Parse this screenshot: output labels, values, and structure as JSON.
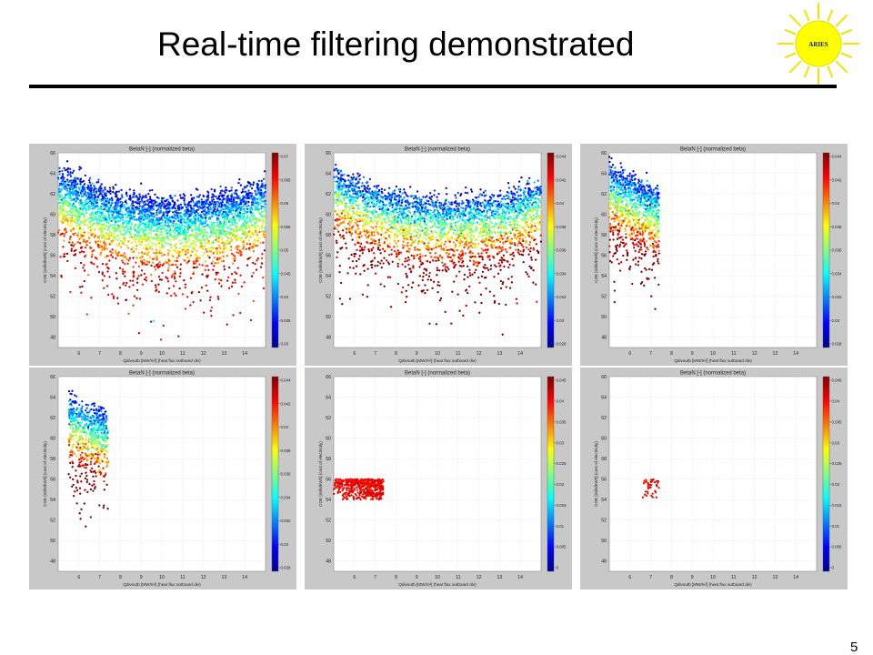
{
  "slide": {
    "title": "Real-time filtering demonstrated",
    "page_number": "5",
    "logo_text": "ARIES"
  },
  "colors": {
    "panel_bg": "#c8c8c8",
    "plot_bg": "#ffffff",
    "grid": "#dedede",
    "title_rule": "#000000",
    "colormap": [
      "#00008f",
      "#0000ff",
      "#0080ff",
      "#00ffff",
      "#80ff80",
      "#ffff00",
      "#ff8000",
      "#ff0000",
      "#800000"
    ]
  },
  "chart_data": [
    {
      "type": "scatter",
      "title": "BetaN [-] (normalized beta)",
      "xlabel": "Qdivoutb [MW/m²] (heat flux outboard div)",
      "ylabel": "COE [mills/kWh] (cost of electricity)",
      "xlim": [
        5,
        15
      ],
      "ylim": [
        47,
        66
      ],
      "xticks": [
        6,
        7,
        8,
        9,
        10,
        11,
        12,
        13,
        14
      ],
      "yticks": [
        48,
        50,
        52,
        54,
        56,
        58,
        60,
        62,
        64,
        66
      ],
      "colorbar": {
        "min": 0.03,
        "max": 0.07,
        "ticks": [
          "0.07",
          "0.065",
          "0.06",
          "0.055",
          "0.05",
          "0.045",
          "0.04",
          "0.035",
          "0.03"
        ]
      },
      "grid": true,
      "filter": {
        "x_range": [
          5.0,
          15.0
        ],
        "y_range": [
          47,
          66
        ]
      },
      "cloud": {
        "n": 3600,
        "x_range": [
          5.0,
          15.0
        ]
      }
    },
    {
      "type": "scatter",
      "title": "BetaN [-] (normalized beta)",
      "xlabel": "Qdivoutb [MW/m²] (heat flux outboard div)",
      "ylabel": "COE [mills/kWh] (cost of electricity)",
      "xlim": [
        5,
        15
      ],
      "ylim": [
        47,
        66
      ],
      "xticks": [
        6,
        7,
        8,
        9,
        10,
        11,
        12,
        13,
        14
      ],
      "yticks": [
        48,
        50,
        52,
        54,
        56,
        58,
        60,
        62,
        64,
        66
      ],
      "colorbar": {
        "min": 0.028,
        "max": 0.044,
        "ticks": [
          "0.044",
          "0.042",
          "0.04",
          "0.038",
          "0.036",
          "0.034",
          "0.032",
          "0.03",
          "0.028"
        ]
      },
      "grid": true,
      "filter": {
        "x_range": [
          5.0,
          15.0
        ],
        "y_range": [
          47,
          66
        ]
      },
      "cloud": {
        "n": 3000,
        "x_range": [
          5.0,
          15.0
        ]
      }
    },
    {
      "type": "scatter",
      "title": "BetaN [-] (normalized beta)",
      "xlabel": "Qdivoutb [MW/m²] (heat flux outboard div)",
      "ylabel": "COE [mills/kWh] (cost of electricity)",
      "xlim": [
        5,
        15
      ],
      "ylim": [
        47,
        66
      ],
      "xticks": [
        6,
        7,
        8,
        9,
        10,
        11,
        12,
        13,
        14
      ],
      "yticks": [
        48,
        50,
        52,
        54,
        56,
        58,
        60,
        62,
        64,
        66
      ],
      "colorbar": {
        "min": 0.028,
        "max": 0.044,
        "ticks": [
          "0.044",
          "0.042",
          "0.04",
          "0.038",
          "0.036",
          "0.034",
          "0.032",
          "0.03",
          "0.028"
        ]
      },
      "grid": true,
      "filter": {
        "x_range": [
          5.0,
          7.4
        ],
        "y_range": [
          47,
          66
        ]
      },
      "cloud": {
        "n": 1000,
        "x_range": [
          5.0,
          7.4
        ]
      }
    },
    {
      "type": "scatter",
      "title": "BetaN [-] (normalized beta)",
      "xlabel": "Qdivoutb [MW/m²] (heat flux outboard div)",
      "ylabel": "COE [mills/kWh] (cost of electricity)",
      "xlim": [
        5,
        15
      ],
      "ylim": [
        47,
        66
      ],
      "xticks": [
        6,
        7,
        8,
        9,
        10,
        11,
        12,
        13,
        14
      ],
      "yticks": [
        48,
        50,
        52,
        54,
        56,
        58,
        60,
        62,
        64,
        66
      ],
      "colorbar": {
        "min": 0.028,
        "max": 0.044,
        "ticks": [
          "0.044",
          "0.042",
          "0.04",
          "0.038",
          "0.036",
          "0.034",
          "0.032",
          "0.03",
          "0.028"
        ]
      },
      "grid": true,
      "filter": {
        "x_range": [
          5.0,
          7.4
        ],
        "y_range": [
          47,
          66
        ]
      },
      "cloud": {
        "n": 700,
        "x_range": [
          5.5,
          7.4
        ]
      }
    },
    {
      "type": "scatter",
      "title": "BetaN [-] (normalized beta)",
      "xlabel": "Qdivoutb [MW/m²] (heat flux outboard div)",
      "ylabel": "COE [mills/kWh] (cost of electricity)",
      "xlim": [
        5,
        15
      ],
      "ylim": [
        47,
        66
      ],
      "xticks": [
        6,
        7,
        8,
        9,
        10,
        11,
        12,
        13,
        14
      ],
      "yticks": [
        48,
        50,
        52,
        54,
        56,
        58,
        60,
        62,
        64,
        66
      ],
      "colorbar": {
        "min": 0,
        "max": 0.045,
        "ticks": [
          "0.045",
          "0.04",
          "0.035",
          "0.03",
          "0.025",
          "0.02",
          "0.015",
          "0.01",
          "0.005",
          "0"
        ]
      },
      "grid": true,
      "filter": {
        "x_range": [
          5.0,
          7.4
        ],
        "y_range": [
          54,
          56
        ]
      },
      "cloud": {
        "n": 500,
        "x_range": [
          5.0,
          7.4
        ]
      }
    },
    {
      "type": "scatter",
      "title": "BetaN [-] (normalized beta)",
      "xlabel": "Qdivoutb [MW/m²] (heat flux outboard div)",
      "ylabel": "COE [mills/kWh] (cost of electricity)",
      "xlim": [
        5,
        15
      ],
      "ylim": [
        47,
        66
      ],
      "xticks": [
        6,
        7,
        8,
        9,
        10,
        11,
        12,
        13,
        14
      ],
      "yticks": [
        48,
        50,
        52,
        54,
        56,
        58,
        60,
        62,
        64,
        66
      ],
      "colorbar": {
        "min": 0,
        "max": 0.045,
        "ticks": [
          "0.045",
          "0.04",
          "0.035",
          "0.03",
          "0.025",
          "0.02",
          "0.015",
          "0.01",
          "0.005",
          "0"
        ]
      },
      "grid": true,
      "filter": {
        "x_range": [
          6.6,
          7.4
        ],
        "y_range": [
          54,
          56
        ]
      },
      "cloud": {
        "n": 40,
        "x_range": [
          6.6,
          7.4
        ]
      }
    }
  ]
}
